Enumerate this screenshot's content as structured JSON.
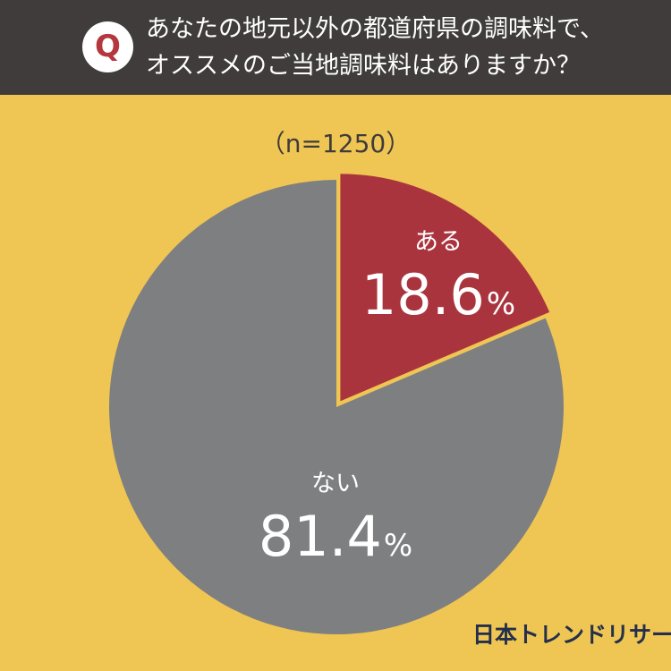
{
  "header": {
    "badge": "Q",
    "question_line_1": "あなたの地元以外の都道府県の調味料で、",
    "question_line_2": "オススメのご当地調味料はありますか？"
  },
  "chart_data": {
    "type": "pie",
    "sample_size": "（n=1250）",
    "slices": [
      {
        "label": "ある",
        "value": 18.6,
        "display_number": "18.6",
        "display_unit": "%",
        "color": "#aa343e"
      },
      {
        "label": "ない",
        "value": 81.4,
        "display_number": "81.4",
        "display_unit": "%",
        "color": "#7e7f81"
      }
    ],
    "start_direction": "top",
    "direction": "clockwise",
    "first_slice_exploded": true,
    "legend": "none"
  },
  "colors": {
    "background": "#efc553",
    "header": "#3f3c3b",
    "question_badge": "#ffffff",
    "question_letter": "#b4373d",
    "brand": "#232f4c"
  },
  "brand": {
    "name": "日本トレンドリサーチ"
  }
}
